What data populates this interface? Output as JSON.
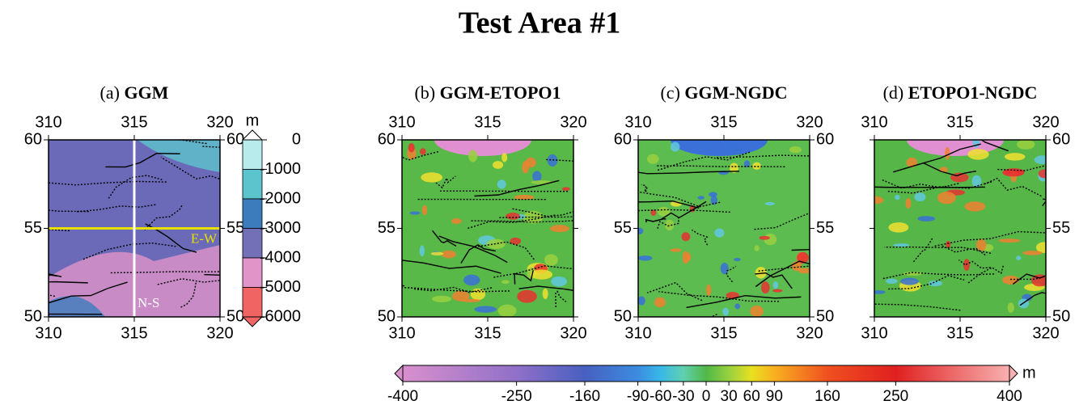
{
  "title": "Test Area #1",
  "panels": [
    {
      "prefix": "(a)",
      "name": "GGM",
      "base": "#6a6ab8",
      "left_labels": true,
      "right_labels": true,
      "profiles": [
        {
          "label": "E-W",
          "lat": 55,
          "color": "#e8e000"
        },
        {
          "label": "N-S",
          "lon": 315,
          "color": "#ffffff"
        }
      ]
    },
    {
      "prefix": "(b)",
      "name": "GGM-ETOPO1",
      "base": "#58b848",
      "left_labels": true,
      "right_labels": false
    },
    {
      "prefix": "(c)",
      "name": "GGM-NGDC",
      "base": "#5cbc50",
      "left_labels": true,
      "right_labels": true
    },
    {
      "prefix": "(d)",
      "name": "ETOPO1-NGDC",
      "base": "#56b648",
      "left_labels": false,
      "right_labels": true
    }
  ],
  "xlim": [
    310,
    320
  ],
  "ylim": [
    50,
    60
  ],
  "xticks": [
    310,
    315,
    320
  ],
  "yticks": [
    50,
    55,
    60
  ],
  "depth_colorbar": {
    "unit": "m",
    "lim": [
      -6000,
      0
    ],
    "ticks": [
      0,
      -1000,
      -2000,
      -3000,
      -4000,
      -5000,
      -6000
    ],
    "colors": [
      "#b8ecec",
      "#5cc4cc",
      "#3c7cbc",
      "#7470b8",
      "#e094c8",
      "#f06464"
    ]
  },
  "diff_colorbar": {
    "unit": "m",
    "lim": [
      -400,
      400
    ],
    "ticks": [
      -400,
      -250,
      -160,
      -90,
      -60,
      -30,
      0,
      30,
      60,
      90,
      160,
      250,
      400
    ],
    "colors": [
      "#d890cc",
      "#9070c8",
      "#4860c0",
      "#3c8ce0",
      "#38b8e8",
      "#60d0b0",
      "#50b848",
      "#98d040",
      "#e8e020",
      "#f8b020",
      "#f05020",
      "#e02020",
      "#f8b0b0"
    ]
  }
}
